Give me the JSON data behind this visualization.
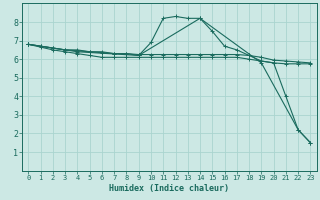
{
  "xlabel": "Humidex (Indice chaleur)",
  "bg_color": "#cce8e4",
  "line_color": "#1a6b5e",
  "grid_color": "#aad4cf",
  "xlim": [
    -0.5,
    23.5
  ],
  "ylim": [
    0,
    9
  ],
  "xtick_labels": [
    "0",
    "1",
    "2",
    "3",
    "4",
    "5",
    "6",
    "7",
    "8",
    "9",
    "10",
    "11",
    "12",
    "13",
    "14",
    "15",
    "16",
    "17",
    "18",
    "19",
    "20",
    "21",
    "22",
    "23"
  ],
  "ytick_labels": [
    "1",
    "2",
    "3",
    "4",
    "5",
    "6",
    "7",
    "8"
  ],
  "series": [
    {
      "x": [
        0,
        1,
        2,
        3,
        4,
        5,
        6,
        7,
        8,
        9,
        10,
        11,
        12,
        13,
        14,
        15,
        16,
        17,
        18,
        19,
        20,
        21,
        22,
        23
      ],
      "y": [
        6.8,
        6.7,
        6.6,
        6.5,
        6.5,
        6.4,
        6.4,
        6.3,
        6.3,
        6.2,
        6.9,
        8.2,
        8.3,
        8.2,
        8.2,
        7.5,
        6.7,
        6.5,
        6.2,
        5.9,
        5.8,
        4.0,
        2.2,
        1.5
      ],
      "marker": true
    },
    {
      "x": [
        0,
        1,
        2,
        3,
        4,
        5,
        6,
        7,
        8,
        9,
        10,
        11,
        12,
        13,
        14,
        15,
        16,
        17,
        18,
        19,
        20,
        21,
        22,
        23
      ],
      "y": [
        6.8,
        6.7,
        6.6,
        6.5,
        6.45,
        6.4,
        6.35,
        6.3,
        6.3,
        6.25,
        6.25,
        6.25,
        6.25,
        6.25,
        6.25,
        6.25,
        6.25,
        6.25,
        6.2,
        6.1,
        5.95,
        5.9,
        5.85,
        5.8
      ],
      "marker": true
    },
    {
      "x": [
        0,
        1,
        2,
        3,
        4,
        5,
        6,
        7,
        8,
        9,
        10,
        11,
        12,
        13,
        14,
        15,
        16,
        17,
        18,
        19,
        20,
        21,
        22,
        23
      ],
      "y": [
        6.8,
        6.65,
        6.5,
        6.4,
        6.3,
        6.2,
        6.1,
        6.1,
        6.1,
        6.1,
        6.1,
        6.1,
        6.1,
        6.1,
        6.1,
        6.1,
        6.1,
        6.1,
        6.0,
        5.9,
        5.8,
        5.75,
        5.75,
        5.75
      ],
      "marker": true
    },
    {
      "x": [
        0,
        4,
        9,
        14,
        19,
        22,
        23
      ],
      "y": [
        6.8,
        6.4,
        6.2,
        8.2,
        5.8,
        2.2,
        1.5
      ],
      "marker": true
    }
  ]
}
